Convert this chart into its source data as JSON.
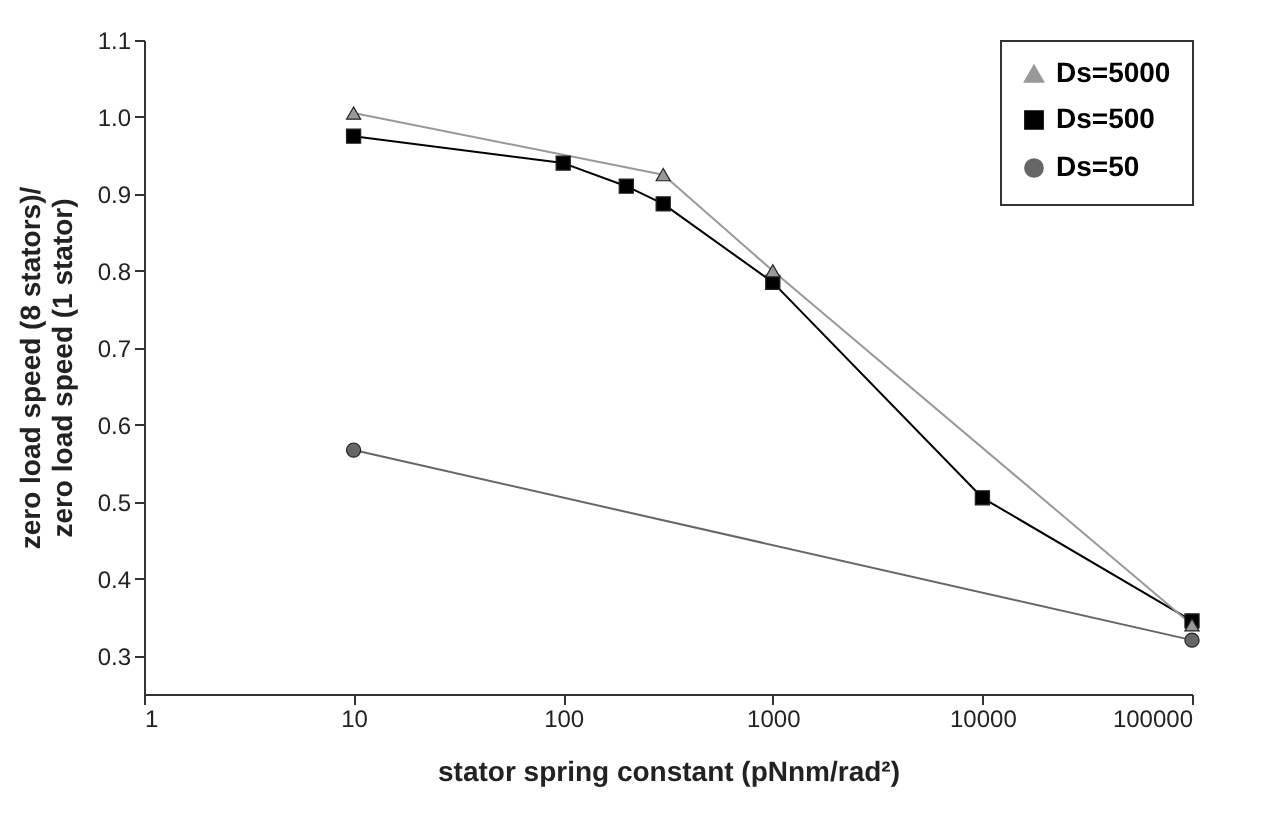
{
  "chart_data": {
    "type": "line",
    "xlabel": "stator spring constant (pNnm/rad²)",
    "ylabel": "zero load speed (8 stators)/\nzero load speed (1 stator)",
    "log": "x",
    "grid": false,
    "legend": "top right",
    "xlim": [
      1,
      100000
    ],
    "xticks": [
      1,
      10,
      100,
      1000,
      10000,
      100000
    ],
    "ylim": [
      0.25,
      1.1
    ],
    "yticks": [
      0.3,
      0.4,
      0.5,
      0.6,
      0.7,
      0.8,
      0.9,
      {
        "value": 1,
        "label": "1.0"
      },
      1.1
    ],
    "series": [
      {
        "name": "Ds=5000",
        "color": "#999999",
        "marker": "triangle",
        "x": [
          10,
          300,
          1000,
          100000
        ],
        "values": [
          1.005,
          0.925,
          0.8,
          0.34
        ]
      },
      {
        "name": "Ds=500",
        "color": "#000000",
        "marker": "square",
        "x": [
          10,
          100,
          200,
          300,
          1000,
          10000,
          100000
        ],
        "values": [
          0.975,
          0.94,
          0.91,
          0.887,
          0.785,
          0.505,
          0.345
        ]
      },
      {
        "name": "Ds=50",
        "color": "#666666",
        "marker": "circle",
        "x": [
          10,
          100000
        ],
        "values": [
          0.567,
          0.32
        ]
      }
    ]
  }
}
